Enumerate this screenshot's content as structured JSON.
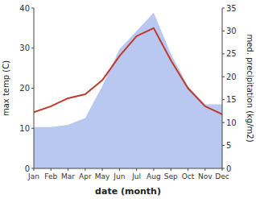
{
  "chart_data": {
    "type": "line",
    "xlabel": "date (month)",
    "ylabel": "max temp (C)",
    "y2label": "med. precipitation (kg/m2)",
    "categories": [
      "Jan",
      "Feb",
      "Mar",
      "Apr",
      "May",
      "Jun",
      "Jul",
      "Aug",
      "Sep",
      "Oct",
      "Nov",
      "Dec"
    ],
    "series": [
      {
        "type": "area",
        "axis": "y2",
        "color": "#b8c8f0",
        "values": [
          9.0,
          9.0,
          9.5,
          11.0,
          18.0,
          26.0,
          30.0,
          34.0,
          25.0,
          18.0,
          14.0,
          14.0
        ]
      },
      {
        "type": "line",
        "color": "#c0392b",
        "values": [
          14.0,
          15.5,
          17.5,
          18.5,
          22.0,
          28.0,
          33.0,
          35.0,
          27.0,
          20.0,
          15.5,
          13.5
        ]
      }
    ],
    "ylim": [
      0,
      40
    ],
    "yticks": [
      0,
      10,
      20,
      30,
      40
    ],
    "y2lim": [
      0,
      35
    ],
    "y2ticks": [
      0,
      5,
      10,
      15,
      20,
      25,
      30,
      35
    ],
    "grid": false
  }
}
